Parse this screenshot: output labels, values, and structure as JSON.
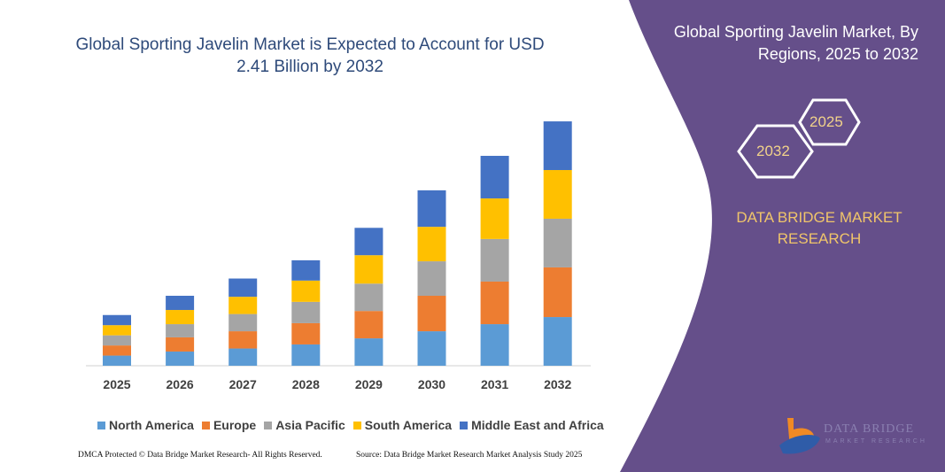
{
  "chart_data": {
    "type": "bar",
    "stacked": true,
    "title": "Global Sporting Javelin Market is Expected to Account for USD 2.41 Billion by 2032",
    "categories": [
      "2025",
      "2026",
      "2027",
      "2028",
      "2029",
      "2030",
      "2031",
      "2032"
    ],
    "series": [
      {
        "name": "North America",
        "color": "#5b9bd5",
        "values": [
          0.1,
          0.14,
          0.17,
          0.21,
          0.27,
          0.34,
          0.41,
          0.48
        ]
      },
      {
        "name": "Europe",
        "color": "#ed7d31",
        "values": [
          0.1,
          0.14,
          0.17,
          0.21,
          0.27,
          0.35,
          0.42,
          0.49
        ]
      },
      {
        "name": "Asia Pacific",
        "color": "#a5a5a5",
        "values": [
          0.1,
          0.13,
          0.17,
          0.21,
          0.27,
          0.34,
          0.42,
          0.48
        ]
      },
      {
        "name": "South America",
        "color": "#ffc000",
        "values": [
          0.1,
          0.14,
          0.17,
          0.21,
          0.28,
          0.34,
          0.4,
          0.48
        ]
      },
      {
        "name": "Middle East and Africa",
        "color": "#4472c4",
        "values": [
          0.1,
          0.14,
          0.18,
          0.2,
          0.27,
          0.36,
          0.42,
          0.48
        ]
      }
    ],
    "unit": "USD Billion",
    "y_axis_shown": false,
    "grid": false,
    "legend_placement": "bottom"
  },
  "side_panel": {
    "title": "Global Sporting Javelin Market, By Regions, 2025 to 2032",
    "hex_start": "2025",
    "hex_end": "2032",
    "brand": "DATA BRIDGE MARKET RESEARCH",
    "logo_text": "DATA BRIDGE",
    "logo_sub": "MARKET RESEARCH",
    "panel_color": "#654f8a"
  },
  "footer": {
    "left": "DMCA Protected © Data Bridge Market Research-  All Rights Reserved.",
    "right": "Source: Data Bridge Market Research  Market Analysis Study 2025"
  }
}
